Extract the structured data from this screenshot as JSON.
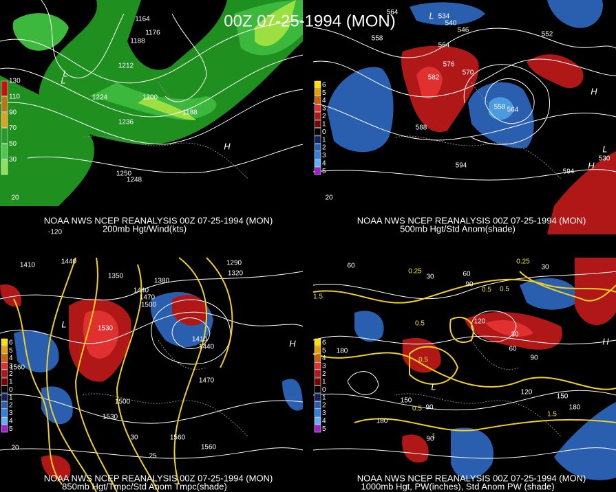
{
  "title": "00Z 07-25-1994 (MON)",
  "panels": [
    {
      "caption": "NOAA NWS NCEP REANALYSIS 00Z 07-25-1994 (MON)",
      "subcaption": "200mb Hgt/Wind(kts)",
      "colorbar": [
        130,
        110,
        90,
        70,
        50,
        30
      ],
      "labels": [
        1164,
        1176,
        1188,
        1212,
        1224,
        1200,
        1236,
        1188,
        1250,
        1248,
        "L",
        "H",
        "L",
        "-120",
        20
      ]
    },
    {
      "caption": "NOAA NWS NCEP REANALYSIS 00Z 07-25-1994 (MON)",
      "subcaption": "500mb Hgt/Std Anom(shade)",
      "colorbar": [
        6,
        5,
        4,
        3,
        2,
        1,
        0,
        1,
        2,
        3,
        4,
        5
      ],
      "labels": [
        564,
        534,
        540,
        546,
        558,
        564,
        576,
        582,
        570,
        588,
        558,
        564,
        552,
        594,
        594,
        530,
        "H",
        "H",
        "L",
        "L",
        20
      ]
    },
    {
      "caption": "NOAA NWS NCEP REANALYSIS 00Z 07-25-1994 (MON)",
      "subcaption": "850mb Hgt/Tmpc/Std Anom Tmpc(shade)",
      "colorbar": [
        6,
        5,
        4,
        3,
        2,
        1,
        0,
        1,
        2,
        3,
        4,
        5
      ],
      "labels": [
        1410,
        1440,
        1350,
        1380,
        1440,
        1470,
        1500,
        1530,
        1410,
        1440,
        1470,
        1560,
        1500,
        1530,
        1560,
        1560,
        1290,
        1320,
        30,
        25,
        20,
        "H",
        "L"
      ]
    },
    {
      "caption": "NOAA NWS NCEP REANALYSIS 00Z 07-25-1994 (MON)",
      "subcaption": "1000mb Hgt, PW(inches), Std Anom PW (shade)",
      "colorbar": [
        6,
        5,
        4,
        3,
        2,
        1,
        0,
        1,
        2,
        3,
        4,
        5
      ],
      "labels": [
        60,
        0.25,
        30,
        60,
        90,
        0.5,
        0.25,
        30,
        0.5,
        120,
        30,
        60,
        90,
        0.5,
        0.5,
        150,
        0.5,
        90,
        1.5,
        180,
        150,
        120,
        180,
        1,
        90,
        1.5,
        180,
        "H",
        "L"
      ]
    }
  ]
}
